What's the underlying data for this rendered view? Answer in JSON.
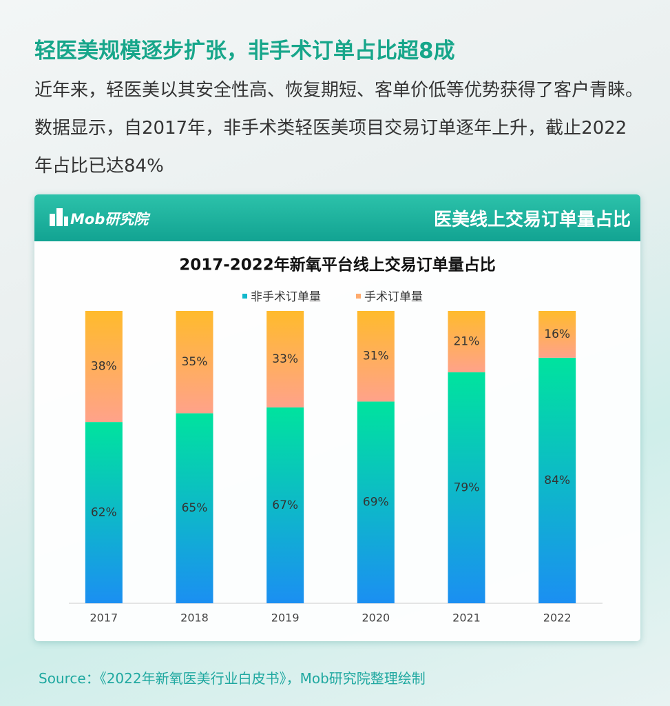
{
  "header": {
    "title": "轻医美规模逐步扩张，非手术订单占比超8成",
    "text": "近年来，轻医美以其安全性高、恢复期短、客单价低等优势获得了客户青睐。数据显示，自2017年，非手术类轻医美项目交易订单逐年上升，截止2022年占比已达84%"
  },
  "panel": {
    "logo": "Mob研究院",
    "title": "医美线上交易订单量占比"
  },
  "chart_data": {
    "type": "stacked_bar",
    "title": "2017-2022年新氧平台线上交易订单量占比",
    "categories": [
      "2017",
      "2018",
      "2019",
      "2020",
      "2021",
      "2022"
    ],
    "series": [
      {
        "name": "非手术订单量",
        "color": "#12b8cc",
        "values": [
          62,
          65,
          67,
          69,
          79,
          84
        ],
        "value_labels": [
          "62%",
          "65%",
          "67%",
          "69%",
          "79%",
          "84%"
        ]
      },
      {
        "name": "手术订单量",
        "color": "#ffab6e",
        "values": [
          38,
          35,
          33,
          31,
          21,
          16
        ],
        "value_labels": [
          "38%",
          "35%",
          "33%",
          "31%",
          "21%",
          "16%"
        ]
      }
    ],
    "ylim": [
      0,
      100
    ]
  },
  "source": "Source：《2022年新氧医美行业白皮书》，Mob研究院整理绘制"
}
